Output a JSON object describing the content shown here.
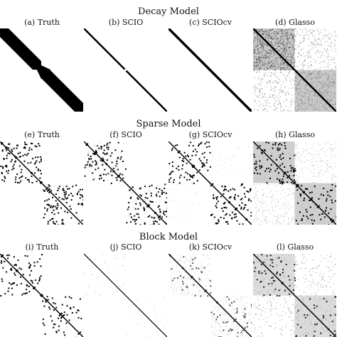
{
  "rows": [
    {
      "title": "Decay Model",
      "panels": [
        {
          "label": "(a) Truth"
        },
        {
          "label": "(b) SCIO"
        },
        {
          "label": "(c) SCIOcv"
        },
        {
          "label": "(d) Glasso"
        }
      ]
    },
    {
      "title": "Sparse Model",
      "panels": [
        {
          "label": "(e) Truth"
        },
        {
          "label": "(f) SCIO"
        },
        {
          "label": "(g) SCIOcv"
        },
        {
          "label": "(h) Glasso"
        }
      ]
    },
    {
      "title": "Block Model",
      "panels": [
        {
          "label": "(i) Truth"
        },
        {
          "label": "(j) SCIO"
        },
        {
          "label": "(k) SCIOcv"
        },
        {
          "label": "(l) Glasso"
        }
      ]
    }
  ],
  "colors": {
    "ink": "#000000",
    "background": "#ffffff"
  }
}
